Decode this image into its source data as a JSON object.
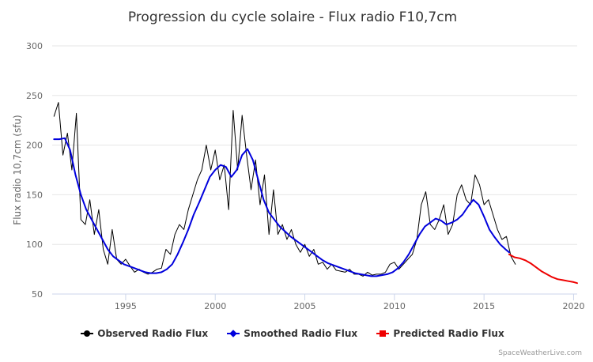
{
  "chart_data": {
    "type": "line",
    "title": "Progression du cycle solaire - Flux radio F10,7cm",
    "ylabel": "Flux radio 10,7cm (sfu)",
    "xlabel": "",
    "xlim": [
      1990.9,
      2020.2
    ],
    "ylim": [
      50,
      300
    ],
    "x_ticks": [
      "1995",
      "2000",
      "2005",
      "2010",
      "2015",
      "2020"
    ],
    "y_ticks": [
      "50",
      "100",
      "150",
      "200",
      "250",
      "300"
    ],
    "grid": true,
    "legend_position": "bottom",
    "series": [
      {
        "name": "Observed Radio Flux",
        "color": "#000000",
        "marker": "circle",
        "x": [
          1991.0,
          1991.25,
          1991.5,
          1991.75,
          1992.0,
          1992.25,
          1992.5,
          1992.75,
          1993.0,
          1993.25,
          1993.5,
          1993.75,
          1994.0,
          1994.25,
          1994.5,
          1994.75,
          1995.0,
          1995.25,
          1995.5,
          1995.75,
          1996.0,
          1996.25,
          1996.5,
          1996.75,
          1997.0,
          1997.25,
          1997.5,
          1997.75,
          1998.0,
          1998.25,
          1998.5,
          1998.75,
          1999.0,
          1999.25,
          1999.5,
          1999.75,
          2000.0,
          2000.25,
          2000.5,
          2000.75,
          2001.0,
          2001.25,
          2001.5,
          2001.75,
          2002.0,
          2002.25,
          2002.5,
          2002.75,
          2003.0,
          2003.25,
          2003.5,
          2003.75,
          2004.0,
          2004.25,
          2004.5,
          2004.75,
          2005.0,
          2005.25,
          2005.5,
          2005.75,
          2006.0,
          2006.25,
          2006.5,
          2006.75,
          2007.0,
          2007.25,
          2007.5,
          2007.75,
          2008.0,
          2008.25,
          2008.5,
          2008.75,
          2009.0,
          2009.25,
          2009.5,
          2009.75,
          2010.0,
          2010.25,
          2010.5,
          2010.75,
          2011.0,
          2011.25,
          2011.5,
          2011.75,
          2012.0,
          2012.25,
          2012.5,
          2012.75,
          2013.0,
          2013.25,
          2013.5,
          2013.75,
          2014.0,
          2014.25,
          2014.5,
          2014.75,
          2015.0,
          2015.25,
          2015.5,
          2015.75,
          2016.0,
          2016.25,
          2016.5,
          2016.75
        ],
        "values": [
          229,
          243,
          190,
          212,
          175,
          232,
          125,
          120,
          145,
          110,
          135,
          95,
          80,
          115,
          85,
          80,
          85,
          78,
          72,
          75,
          72,
          70,
          72,
          75,
          76,
          95,
          90,
          110,
          120,
          115,
          135,
          150,
          165,
          175,
          200,
          175,
          195,
          165,
          180,
          135,
          235,
          175,
          230,
          190,
          155,
          185,
          140,
          170,
          110,
          155,
          110,
          120,
          105,
          115,
          100,
          92,
          100,
          88,
          95,
          80,
          82,
          75,
          80,
          74,
          73,
          72,
          75,
          70,
          70,
          68,
          72,
          69,
          70,
          70,
          72,
          80,
          82,
          75,
          80,
          85,
          90,
          105,
          140,
          153,
          120,
          115,
          125,
          140,
          110,
          120,
          150,
          160,
          145,
          140,
          170,
          160,
          140,
          145,
          130,
          115,
          105,
          108,
          88,
          80
        ]
      },
      {
        "name": "Smoothed Radio Flux",
        "color": "#0000dd",
        "marker": "diamond",
        "x": [
          1991.0,
          1991.3,
          1991.6,
          1991.9,
          1992.2,
          1992.5,
          1992.8,
          1993.1,
          1993.4,
          1993.7,
          1994.0,
          1994.3,
          1994.6,
          1994.9,
          1995.2,
          1995.5,
          1995.8,
          1996.1,
          1996.4,
          1996.7,
          1997.0,
          1997.3,
          1997.6,
          1997.9,
          1998.2,
          1998.5,
          1998.8,
          1999.1,
          1999.4,
          1999.7,
          2000.0,
          2000.3,
          2000.6,
          2000.9,
          2001.2,
          2001.5,
          2001.8,
          2002.1,
          2002.4,
          2002.7,
          2003.0,
          2003.3,
          2003.6,
          2003.9,
          2004.2,
          2004.5,
          2004.8,
          2005.1,
          2005.4,
          2005.7,
          2006.0,
          2006.3,
          2006.6,
          2006.9,
          2007.2,
          2007.5,
          2007.8,
          2008.1,
          2008.4,
          2008.7,
          2009.0,
          2009.3,
          2009.6,
          2009.9,
          2010.2,
          2010.5,
          2010.8,
          2011.1,
          2011.4,
          2011.7,
          2012.0,
          2012.3,
          2012.6,
          2012.9,
          2013.2,
          2013.5,
          2013.8,
          2014.1,
          2014.4,
          2014.7,
          2015.0,
          2015.3,
          2015.6,
          2015.9,
          2016.2,
          2016.4
        ],
        "values": [
          206,
          206,
          207,
          195,
          170,
          150,
          135,
          125,
          115,
          105,
          95,
          88,
          84,
          80,
          78,
          76,
          74,
          72,
          71,
          71,
          72,
          75,
          80,
          90,
          102,
          115,
          130,
          142,
          155,
          168,
          175,
          180,
          178,
          168,
          175,
          190,
          196,
          185,
          165,
          145,
          132,
          125,
          118,
          113,
          108,
          104,
          100,
          96,
          92,
          88,
          84,
          81,
          79,
          77,
          75,
          73,
          71,
          70,
          69,
          68,
          68,
          69,
          70,
          72,
          76,
          82,
          90,
          100,
          110,
          118,
          122,
          126,
          124,
          120,
          122,
          125,
          130,
          138,
          145,
          140,
          128,
          115,
          107,
          100,
          95,
          92
        ]
      },
      {
        "name": "Predicted Radio Flux",
        "color": "#ee0000",
        "marker": "square",
        "x": [
          2016.4,
          2016.7,
          2017.0,
          2017.3,
          2017.6,
          2017.9,
          2018.2,
          2018.5,
          2018.8,
          2019.1,
          2019.4,
          2019.7,
          2020.0,
          2020.2
        ],
        "values": [
          90,
          87,
          86,
          84,
          81,
          77,
          73,
          70,
          67,
          65,
          64,
          63,
          62,
          61
        ]
      }
    ]
  },
  "legend": {
    "items": [
      "Observed Radio Flux",
      "Smoothed Radio Flux",
      "Predicted Radio Flux"
    ]
  },
  "credit": "SpaceWeatherLive.com"
}
